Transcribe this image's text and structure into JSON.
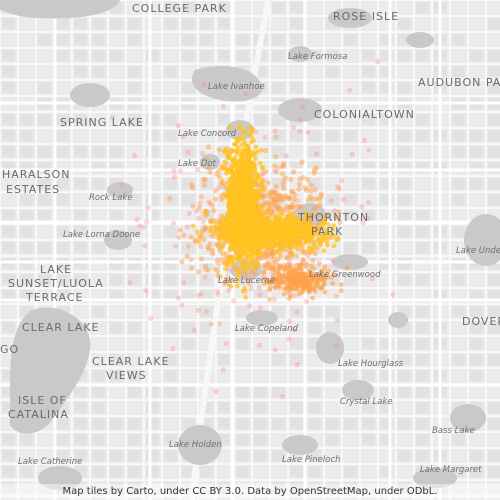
{
  "map": {
    "neighborhood_labels": [
      "COLLEGE PARK",
      "ROSE ISLE",
      "AUDUBON PARK",
      "COLONIALTOWN",
      "SPRING LAKE",
      "HARALSON",
      "ESTATES",
      "THORNTON",
      "PARK",
      "LAKE",
      "SUNSET/LUOLA",
      "TERRACE",
      "CLEAR LAKE",
      "CLEAR LAKE",
      "VIEWS",
      "ISLE OF",
      "CATALINA",
      "DOVER",
      "GO"
    ],
    "lake_labels": [
      "Lake Formosa",
      "Lake Ivanhoe",
      "Lake Concord",
      "Lake Dot",
      "Rock Lake",
      "Lake Lorna Doone",
      "Lake Lucerne",
      "Lake Greenwood",
      "Lake Copeland",
      "Lake Hourglass",
      "Crystal Lake",
      "Bass Lake",
      "Lake Holden",
      "Lake Pineloch",
      "Lake Catherine",
      "Lake Margaret",
      "Lake Unde"
    ],
    "attribution": "Map tiles by Carto, under CC BY 3.0. Data by OpenStreetMap, under ODbL.",
    "colors": {
      "land": "#ebebeb",
      "water": "#c9c9c9",
      "road": "#ffffff",
      "label": "#6b6b6b",
      "point_hot": "#ffc21f",
      "point_mid": "#ffa24a",
      "point_cool": "#ff8a7a"
    }
  }
}
